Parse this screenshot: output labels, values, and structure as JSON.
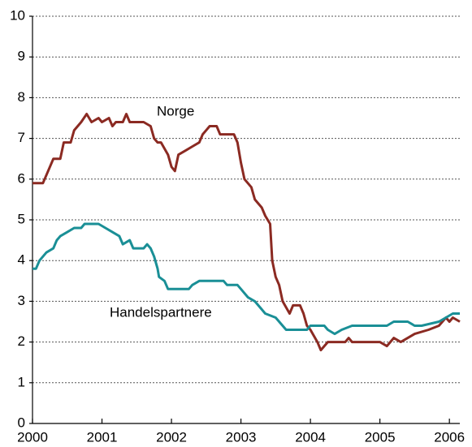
{
  "chart_data": {
    "type": "line",
    "xlim": [
      2000,
      2006.15
    ],
    "xticks": [
      2000,
      2001,
      2002,
      2003,
      2004,
      2005,
      2006
    ],
    "ylim": [
      0,
      10
    ],
    "yticks": [
      0,
      1,
      2,
      3,
      4,
      5,
      6,
      7,
      8,
      9,
      10
    ],
    "grid": true,
    "series": [
      {
        "name": "Norge",
        "color": "#8b2a22",
        "x": [
          2000.0,
          2000.15,
          2000.2,
          2000.3,
          2000.4,
          2000.45,
          2000.55,
          2000.6,
          2000.7,
          2000.78,
          2000.85,
          2000.95,
          2001.0,
          2001.1,
          2001.15,
          2001.2,
          2001.3,
          2001.35,
          2001.4,
          2001.6,
          2001.7,
          2001.75,
          2001.8,
          2001.85,
          2001.95,
          2002.0,
          2002.05,
          2002.1,
          2002.2,
          2002.3,
          2002.4,
          2002.45,
          2002.55,
          2002.65,
          2002.7,
          2002.9,
          2002.95,
          2003.0,
          2003.05,
          2003.15,
          2003.2,
          2003.3,
          2003.35,
          2003.42,
          2003.45,
          2003.5,
          2003.55,
          2003.6,
          2003.7,
          2003.75,
          2003.85,
          2003.9,
          2003.95,
          2004.0,
          2004.1,
          2004.15,
          2004.25,
          2004.5,
          2004.55,
          2004.6,
          2004.8,
          2005.0,
          2005.1,
          2005.2,
          2005.3,
          2005.4,
          2005.5,
          2005.7,
          2005.85,
          2005.95,
          2006.0,
          2006.05,
          2006.15
        ],
        "values": [
          5.9,
          5.9,
          6.1,
          6.5,
          6.5,
          6.9,
          6.9,
          7.2,
          7.4,
          7.6,
          7.4,
          7.5,
          7.4,
          7.5,
          7.3,
          7.4,
          7.4,
          7.6,
          7.4,
          7.4,
          7.3,
          7.0,
          6.9,
          6.9,
          6.6,
          6.3,
          6.2,
          6.6,
          6.7,
          6.8,
          6.9,
          7.1,
          7.3,
          7.3,
          7.1,
          7.1,
          6.9,
          6.4,
          6.0,
          5.8,
          5.5,
          5.3,
          5.1,
          4.9,
          4.0,
          3.6,
          3.4,
          3.0,
          2.7,
          2.9,
          2.9,
          2.7,
          2.4,
          2.3,
          2.0,
          1.8,
          2.0,
          2.0,
          2.1,
          2.0,
          2.0,
          2.0,
          1.9,
          2.1,
          2.0,
          2.1,
          2.2,
          2.3,
          2.4,
          2.6,
          2.5,
          2.6,
          2.5
        ]
      },
      {
        "name": "Handelspartnere",
        "color": "#1a8f96",
        "x": [
          2000.0,
          2000.05,
          2000.1,
          2000.2,
          2000.3,
          2000.35,
          2000.4,
          2000.5,
          2000.6,
          2000.7,
          2000.75,
          2000.95,
          2001.05,
          2001.15,
          2001.25,
          2001.3,
          2001.4,
          2001.45,
          2001.6,
          2001.65,
          2001.7,
          2001.75,
          2001.8,
          2001.82,
          2001.9,
          2001.95,
          2002.25,
          2002.3,
          2002.4,
          2002.75,
          2002.8,
          2002.95,
          2003.0,
          2003.1,
          2003.2,
          2003.3,
          2003.35,
          2003.5,
          2003.6,
          2003.65,
          2003.95,
          2004.0,
          2004.2,
          2004.25,
          2004.35,
          2004.45,
          2004.6,
          2005.1,
          2005.2,
          2005.4,
          2005.5,
          2005.6,
          2005.85,
          2005.95,
          2006.05,
          2006.15
        ],
        "values": [
          3.8,
          3.8,
          4.0,
          4.2,
          4.3,
          4.5,
          4.6,
          4.7,
          4.8,
          4.8,
          4.9,
          4.9,
          4.8,
          4.7,
          4.6,
          4.4,
          4.5,
          4.3,
          4.3,
          4.4,
          4.3,
          4.1,
          3.8,
          3.6,
          3.5,
          3.3,
          3.3,
          3.4,
          3.5,
          3.5,
          3.4,
          3.4,
          3.3,
          3.1,
          3.0,
          2.8,
          2.7,
          2.6,
          2.4,
          2.3,
          2.3,
          2.4,
          2.4,
          2.3,
          2.2,
          2.3,
          2.4,
          2.4,
          2.5,
          2.5,
          2.4,
          2.4,
          2.5,
          2.6,
          2.7,
          2.7
        ]
      }
    ]
  }
}
